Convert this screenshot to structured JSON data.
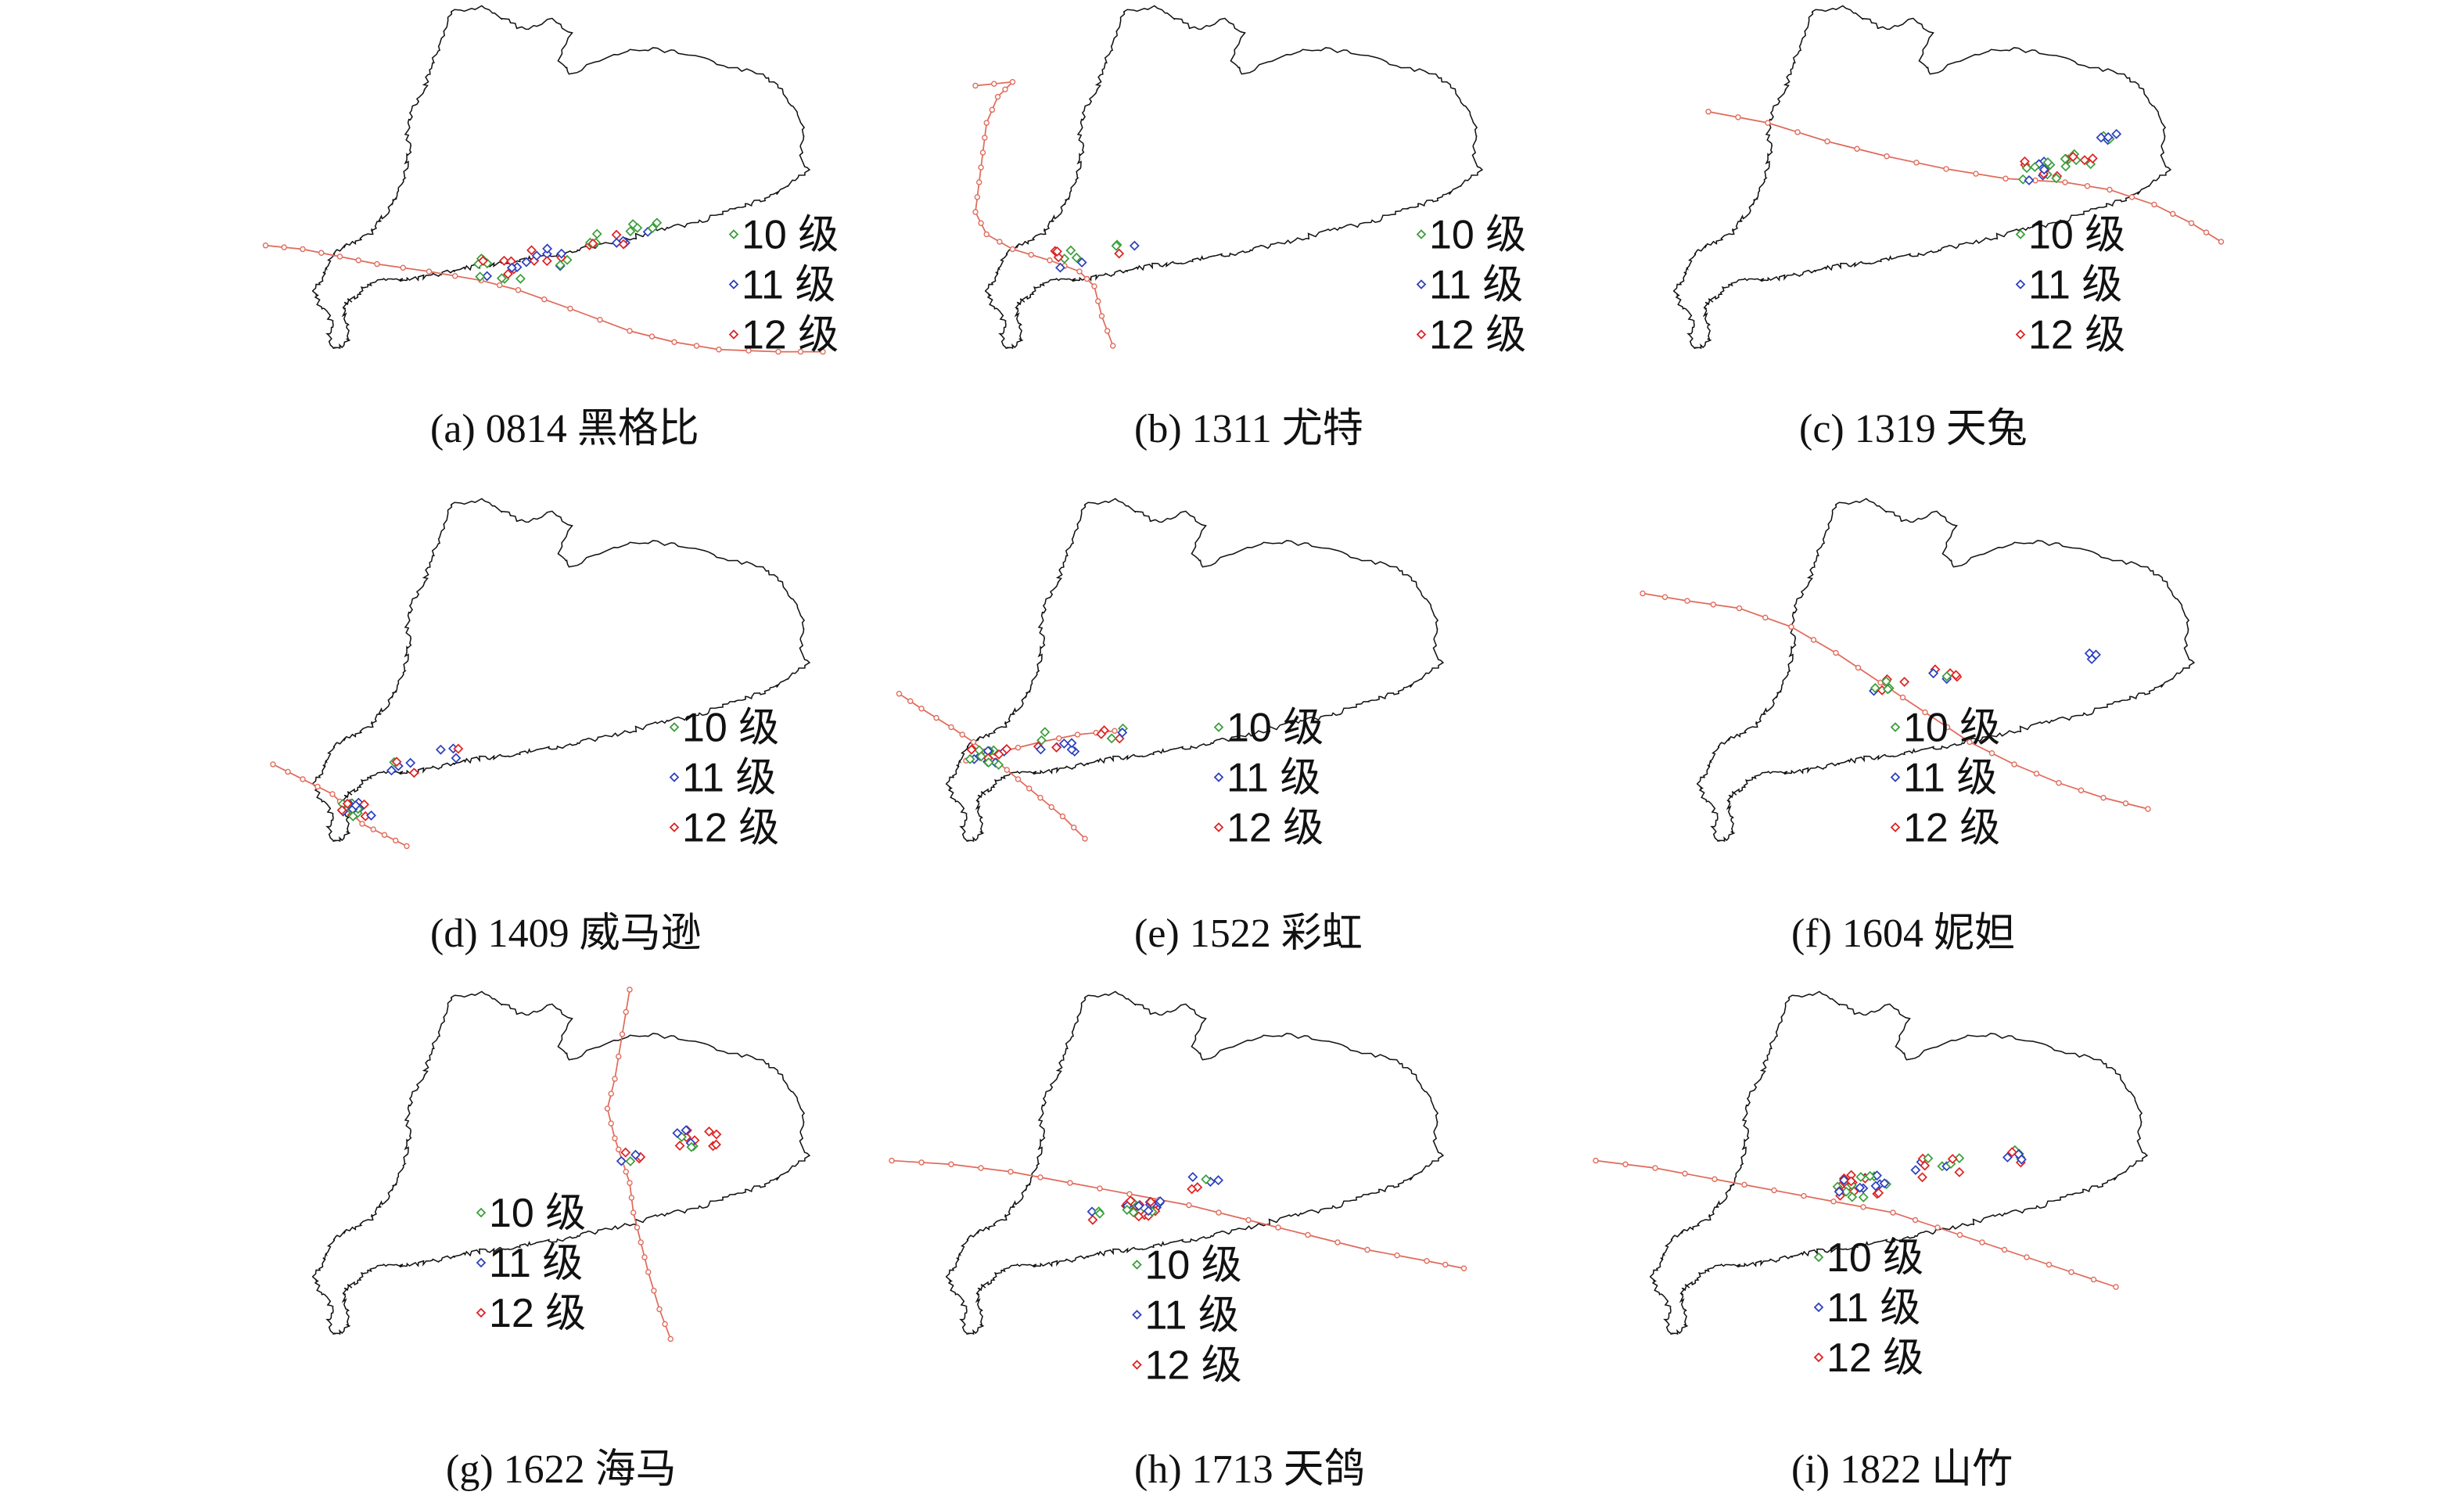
{
  "legend": {
    "items": [
      {
        "label": "10 级",
        "color": "#3a9e3a"
      },
      {
        "label": "11 级",
        "color": "#2b3fbf"
      },
      {
        "label": "12 级",
        "color": "#e02020"
      }
    ]
  },
  "track_color": "#e06a5a",
  "boundary_color": "#111111",
  "panels": [
    {
      "caption": "(a) 0814 黑格比",
      "storm_id": "0814",
      "storm_name": "黑格比"
    },
    {
      "caption": "(b) 1311 尤特",
      "storm_id": "1311",
      "storm_name": "尤特"
    },
    {
      "caption": "(c) 1319 天兔",
      "storm_id": "1319",
      "storm_name": "天兔"
    },
    {
      "caption": "(d) 1409 威马逊",
      "storm_id": "1409",
      "storm_name": "威马逊"
    },
    {
      "caption": "(e) 1522 彩虹",
      "storm_id": "1522",
      "storm_name": "彩虹"
    },
    {
      "caption": "(f) 1604 妮妲",
      "storm_id": "1604",
      "storm_name": "妮妲"
    },
    {
      "caption": "(g) 1622 海马",
      "storm_id": "1622",
      "storm_name": "海马"
    },
    {
      "caption": "(h) 1713 天鸽",
      "storm_id": "1713",
      "storm_name": "天鸽"
    },
    {
      "caption": "(i) 1822 山竹",
      "storm_id": "1822",
      "storm_name": "山竹"
    }
  ]
}
